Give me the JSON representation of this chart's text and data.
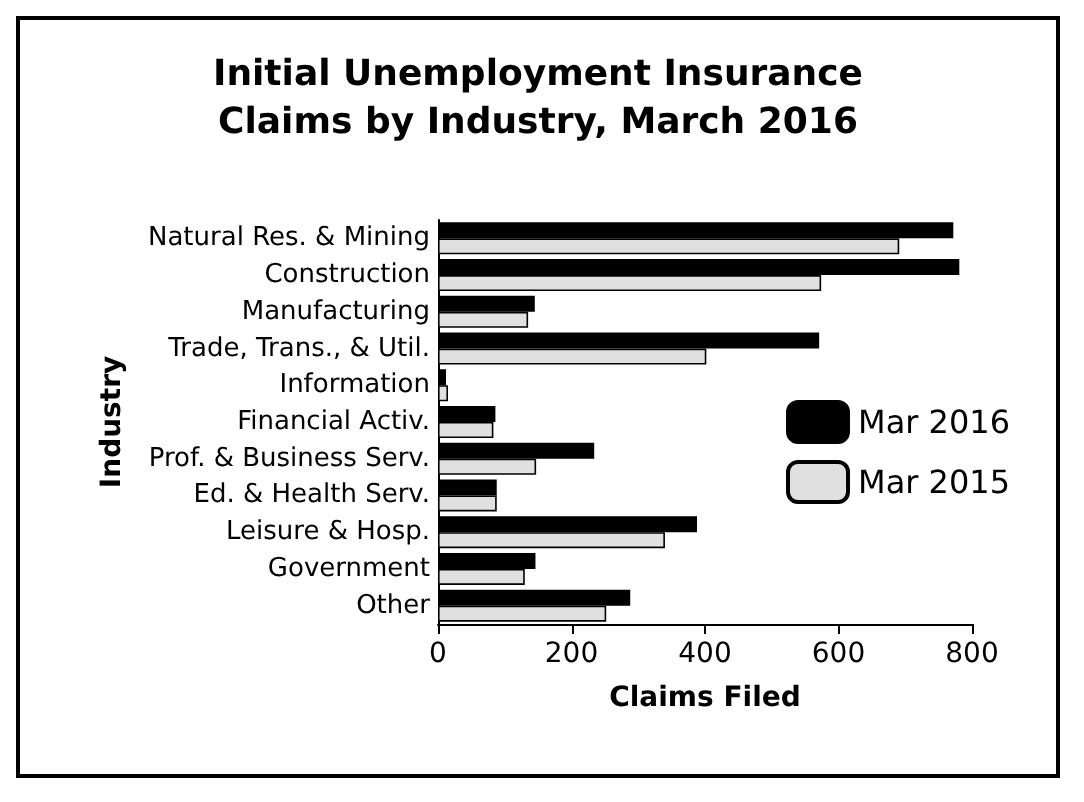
{
  "chart_data": {
    "type": "bar",
    "orientation": "horizontal",
    "title": "Initial Unemployment Insurance\nClaims by Industry, March 2016",
    "xlabel": "Claims Filed",
    "ylabel": "Industry",
    "categories": [
      "Natural Res. & Mining",
      "Construction",
      "Manufacturing",
      "Trade, Trans., & Util.",
      "Information",
      "Financial Activ.",
      "Prof. & Business Serv.",
      "Ed. & Health Serv.",
      "Leisure & Hosp.",
      "Government",
      "Other"
    ],
    "series": [
      {
        "name": "Mar 2016",
        "color": "#000000",
        "values": [
          772,
          781,
          145,
          571,
          12,
          86,
          234,
          88,
          388,
          146,
          288
        ]
      },
      {
        "name": "Mar 2015",
        "color": "#e0e0e0",
        "values": [
          691,
          574,
          135,
          402,
          15,
          83,
          147,
          88,
          340,
          130,
          252
        ]
      }
    ],
    "xlim": [
      0,
      800
    ],
    "xticks": [
      0,
      200,
      400,
      600,
      800
    ],
    "grid": false,
    "legend": "right"
  }
}
